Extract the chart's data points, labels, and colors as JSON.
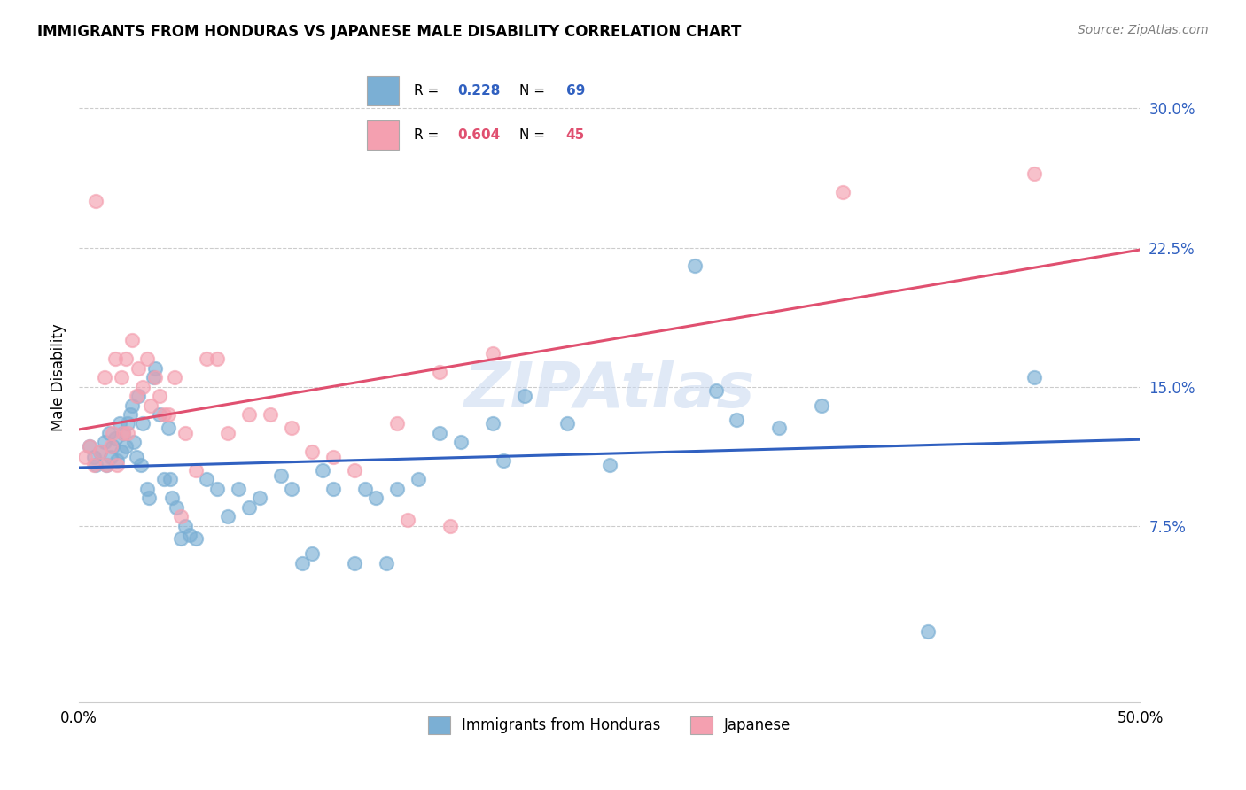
{
  "title": "IMMIGRANTS FROM HONDURAS VS JAPANESE MALE DISABILITY CORRELATION CHART",
  "source": "Source: ZipAtlas.com",
  "ylabel": "Male Disability",
  "watermark": "ZIPAtlas",
  "blue_label": "Immigrants from Honduras",
  "pink_label": "Japanese",
  "blue_R": 0.228,
  "blue_N": 69,
  "pink_R": 0.604,
  "pink_N": 45,
  "xlim": [
    0.0,
    0.5
  ],
  "ylim": [
    -0.02,
    0.33
  ],
  "yticks": [
    0.075,
    0.15,
    0.225,
    0.3
  ],
  "ytick_labels": [
    "7.5%",
    "15.0%",
    "22.5%",
    "30.0%"
  ],
  "blue_color": "#7bafd4",
  "pink_color": "#f4a0b0",
  "blue_line_color": "#3060c0",
  "pink_line_color": "#e05070",
  "blue_scatter": [
    [
      0.005,
      0.118
    ],
    [
      0.007,
      0.112
    ],
    [
      0.008,
      0.108
    ],
    [
      0.01,
      0.115
    ],
    [
      0.012,
      0.12
    ],
    [
      0.013,
      0.108
    ],
    [
      0.014,
      0.125
    ],
    [
      0.015,
      0.112
    ],
    [
      0.016,
      0.118
    ],
    [
      0.017,
      0.122
    ],
    [
      0.018,
      0.11
    ],
    [
      0.019,
      0.13
    ],
    [
      0.02,
      0.115
    ],
    [
      0.021,
      0.125
    ],
    [
      0.022,
      0.118
    ],
    [
      0.023,
      0.13
    ],
    [
      0.024,
      0.135
    ],
    [
      0.025,
      0.14
    ],
    [
      0.026,
      0.12
    ],
    [
      0.027,
      0.112
    ],
    [
      0.028,
      0.145
    ],
    [
      0.029,
      0.108
    ],
    [
      0.03,
      0.13
    ],
    [
      0.032,
      0.095
    ],
    [
      0.033,
      0.09
    ],
    [
      0.035,
      0.155
    ],
    [
      0.036,
      0.16
    ],
    [
      0.038,
      0.135
    ],
    [
      0.04,
      0.1
    ],
    [
      0.042,
      0.128
    ],
    [
      0.043,
      0.1
    ],
    [
      0.044,
      0.09
    ],
    [
      0.046,
      0.085
    ],
    [
      0.048,
      0.068
    ],
    [
      0.05,
      0.075
    ],
    [
      0.052,
      0.07
    ],
    [
      0.055,
      0.068
    ],
    [
      0.06,
      0.1
    ],
    [
      0.065,
      0.095
    ],
    [
      0.07,
      0.08
    ],
    [
      0.075,
      0.095
    ],
    [
      0.08,
      0.085
    ],
    [
      0.085,
      0.09
    ],
    [
      0.095,
      0.102
    ],
    [
      0.1,
      0.095
    ],
    [
      0.105,
      0.055
    ],
    [
      0.11,
      0.06
    ],
    [
      0.115,
      0.105
    ],
    [
      0.12,
      0.095
    ],
    [
      0.13,
      0.055
    ],
    [
      0.135,
      0.095
    ],
    [
      0.14,
      0.09
    ],
    [
      0.145,
      0.055
    ],
    [
      0.15,
      0.095
    ],
    [
      0.16,
      0.1
    ],
    [
      0.17,
      0.125
    ],
    [
      0.18,
      0.12
    ],
    [
      0.195,
      0.13
    ],
    [
      0.2,
      0.11
    ],
    [
      0.21,
      0.145
    ],
    [
      0.23,
      0.13
    ],
    [
      0.25,
      0.108
    ],
    [
      0.29,
      0.215
    ],
    [
      0.3,
      0.148
    ],
    [
      0.31,
      0.132
    ],
    [
      0.33,
      0.128
    ],
    [
      0.35,
      0.14
    ],
    [
      0.4,
      0.018
    ],
    [
      0.45,
      0.155
    ]
  ],
  "pink_scatter": [
    [
      0.003,
      0.112
    ],
    [
      0.005,
      0.118
    ],
    [
      0.007,
      0.108
    ],
    [
      0.008,
      0.25
    ],
    [
      0.01,
      0.115
    ],
    [
      0.012,
      0.155
    ],
    [
      0.013,
      0.108
    ],
    [
      0.015,
      0.118
    ],
    [
      0.016,
      0.125
    ],
    [
      0.017,
      0.165
    ],
    [
      0.018,
      0.108
    ],
    [
      0.02,
      0.155
    ],
    [
      0.021,
      0.125
    ],
    [
      0.022,
      0.165
    ],
    [
      0.023,
      0.125
    ],
    [
      0.025,
      0.175
    ],
    [
      0.027,
      0.145
    ],
    [
      0.028,
      0.16
    ],
    [
      0.03,
      0.15
    ],
    [
      0.032,
      0.165
    ],
    [
      0.034,
      0.14
    ],
    [
      0.036,
      0.155
    ],
    [
      0.038,
      0.145
    ],
    [
      0.04,
      0.135
    ],
    [
      0.042,
      0.135
    ],
    [
      0.045,
      0.155
    ],
    [
      0.048,
      0.08
    ],
    [
      0.05,
      0.125
    ],
    [
      0.055,
      0.105
    ],
    [
      0.06,
      0.165
    ],
    [
      0.065,
      0.165
    ],
    [
      0.07,
      0.125
    ],
    [
      0.08,
      0.135
    ],
    [
      0.09,
      0.135
    ],
    [
      0.1,
      0.128
    ],
    [
      0.11,
      0.115
    ],
    [
      0.12,
      0.112
    ],
    [
      0.13,
      0.105
    ],
    [
      0.15,
      0.13
    ],
    [
      0.155,
      0.078
    ],
    [
      0.17,
      0.158
    ],
    [
      0.175,
      0.075
    ],
    [
      0.195,
      0.168
    ],
    [
      0.36,
      0.255
    ],
    [
      0.45,
      0.265
    ]
  ]
}
